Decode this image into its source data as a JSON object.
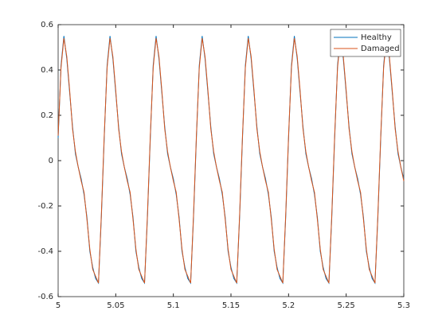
{
  "chart_data": {
    "type": "line",
    "x": [
      5,
      5.0025,
      5.005,
      5.0075,
      5.01,
      5.0125,
      5.015,
      5.0175,
      5.02,
      5.0225,
      5.025,
      5.0275,
      5.03,
      5.0325,
      5.035,
      5.0375,
      5.04,
      5.0425,
      5.045,
      5.0475,
      5.05,
      5.0525,
      5.055,
      5.0575,
      5.06,
      5.0625,
      5.065,
      5.0675,
      5.07,
      5.0725,
      5.075,
      5.0775,
      5.08,
      5.0825,
      5.085,
      5.0875,
      5.09,
      5.0925,
      5.095,
      5.0975,
      5.1,
      5.1025,
      5.105,
      5.1075,
      5.11,
      5.1125,
      5.115,
      5.1175,
      5.12,
      5.1225,
      5.125,
      5.1275,
      5.13,
      5.1325,
      5.135,
      5.1375,
      5.14,
      5.1425,
      5.145,
      5.1475,
      5.15,
      5.1525,
      5.155,
      5.1575,
      5.16,
      5.1625,
      5.165,
      5.1675,
      5.17,
      5.1725,
      5.175,
      5.1775,
      5.18,
      5.1825,
      5.185,
      5.1875,
      5.19,
      5.1925,
      5.195,
      5.1975,
      5.2,
      5.2025,
      5.205,
      5.2075,
      5.21,
      5.2125,
      5.215,
      5.2175,
      5.22,
      5.2225,
      5.225,
      5.2275,
      5.23,
      5.2325,
      5.235,
      5.2375,
      5.24,
      5.2425,
      5.245,
      5.2475,
      5.25,
      5.2525,
      5.255,
      5.2575,
      5.26,
      5.2625,
      5.265,
      5.2675,
      5.27,
      5.2725,
      5.275,
      5.2775,
      5.28,
      5.2825,
      5.285,
      5.2875,
      5.29,
      5.2925,
      5.295,
      5.2975,
      5.3
    ],
    "series": [
      {
        "name": "Healthy",
        "color": "#0072BD",
        "values": [
          0.1,
          0.42,
          0.55,
          0.45,
          0.3,
          0.15,
          0.03,
          -0.03,
          -0.08,
          -0.15,
          -0.25,
          -0.4,
          -0.47,
          -0.52,
          -0.54,
          -0.25,
          0.1,
          0.42,
          0.55,
          0.45,
          0.3,
          0.15,
          0.03,
          -0.03,
          -0.08,
          -0.15,
          -0.25,
          -0.4,
          -0.47,
          -0.52,
          -0.54,
          -0.25,
          0.1,
          0.42,
          0.55,
          0.45,
          0.3,
          0.15,
          0.03,
          -0.03,
          -0.08,
          -0.15,
          -0.25,
          -0.4,
          -0.47,
          -0.52,
          -0.54,
          -0.25,
          0.1,
          0.42,
          0.55,
          0.45,
          0.3,
          0.15,
          0.03,
          -0.03,
          -0.08,
          -0.15,
          -0.25,
          -0.4,
          -0.47,
          -0.52,
          -0.54,
          -0.25,
          0.1,
          0.42,
          0.55,
          0.45,
          0.3,
          0.15,
          0.03,
          -0.03,
          -0.08,
          -0.15,
          -0.25,
          -0.4,
          -0.47,
          -0.52,
          -0.54,
          -0.25,
          0.1,
          0.42,
          0.55,
          0.45,
          0.3,
          0.15,
          0.03,
          -0.03,
          -0.08,
          -0.15,
          -0.25,
          -0.4,
          -0.47,
          -0.52,
          -0.54,
          -0.25,
          0.1,
          0.42,
          0.55,
          0.45,
          0.3,
          0.15,
          0.03,
          -0.03,
          -0.08,
          -0.15,
          -0.25,
          -0.4,
          -0.47,
          -0.52,
          -0.54,
          -0.25,
          0.1,
          0.42,
          0.55,
          0.45,
          0.3,
          0.15,
          0.03,
          -0.03,
          -0.08
        ]
      },
      {
        "name": "Damaged",
        "color": "#D95319",
        "values": [
          0.11,
          0.41,
          0.54,
          0.46,
          0.31,
          0.14,
          0.04,
          -0.03,
          -0.09,
          -0.14,
          -0.26,
          -0.39,
          -0.48,
          -0.51,
          -0.54,
          -0.24,
          0.11,
          0.41,
          0.54,
          0.46,
          0.31,
          0.14,
          0.04,
          -0.03,
          -0.09,
          -0.14,
          -0.26,
          -0.39,
          -0.48,
          -0.51,
          -0.54,
          -0.24,
          0.11,
          0.41,
          0.54,
          0.46,
          0.31,
          0.14,
          0.04,
          -0.03,
          -0.09,
          -0.14,
          -0.26,
          -0.39,
          -0.48,
          -0.51,
          -0.54,
          -0.24,
          0.11,
          0.41,
          0.54,
          0.46,
          0.31,
          0.14,
          0.04,
          -0.03,
          -0.09,
          -0.14,
          -0.26,
          -0.39,
          -0.48,
          -0.51,
          -0.54,
          -0.24,
          0.11,
          0.41,
          0.54,
          0.46,
          0.31,
          0.14,
          0.04,
          -0.03,
          -0.09,
          -0.14,
          -0.26,
          -0.39,
          -0.48,
          -0.51,
          -0.54,
          -0.24,
          0.11,
          0.41,
          0.54,
          0.46,
          0.31,
          0.14,
          0.04,
          -0.03,
          -0.09,
          -0.14,
          -0.26,
          -0.39,
          -0.48,
          -0.51,
          -0.54,
          -0.24,
          0.11,
          0.41,
          0.54,
          0.46,
          0.31,
          0.14,
          0.04,
          -0.03,
          -0.09,
          -0.14,
          -0.26,
          -0.39,
          -0.48,
          -0.51,
          -0.54,
          -0.24,
          0.11,
          0.41,
          0.54,
          0.46,
          0.31,
          0.14,
          0.04,
          -0.03,
          -0.09
        ]
      }
    ],
    "xlim": [
      5,
      5.3
    ],
    "xticks": [
      5,
      5.05,
      5.1,
      5.15,
      5.2,
      5.25,
      5.3
    ],
    "ylim": [
      -0.6,
      0.6
    ],
    "yticks": [
      -0.6,
      -0.4,
      -0.2,
      0,
      0.2,
      0.4,
      0.6
    ],
    "grid": false,
    "legend": "top-right"
  }
}
